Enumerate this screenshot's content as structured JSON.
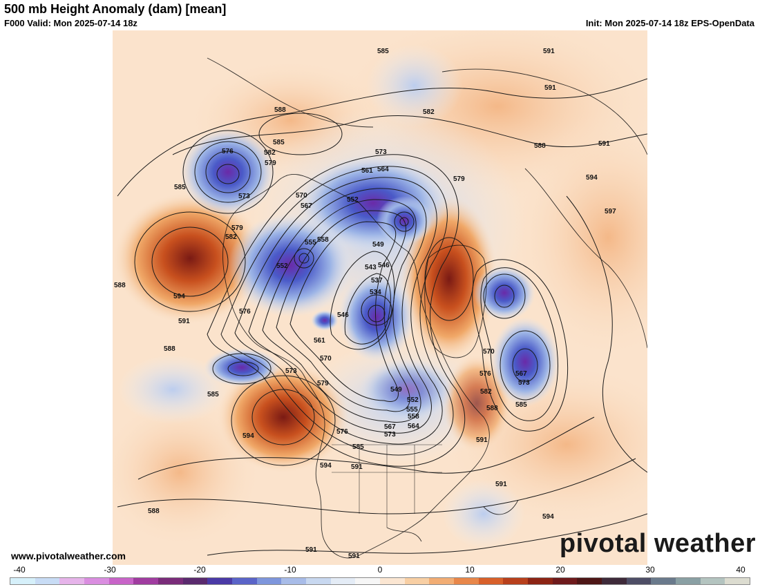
{
  "header": {
    "title": "500 mb Height Anomaly (dam) [mean]",
    "valid": "F000 Valid: Mon 2025-07-14 18z",
    "init": "Init: Mon 2025-07-14 18z EPS-OpenData"
  },
  "footer": {
    "site": "www.pivotalweather.com",
    "brand": "pivotal weather"
  },
  "colorbar": {
    "tick_labels": [
      "-40",
      "-30",
      "-20",
      "-10",
      "0",
      "10",
      "20",
      "30",
      "40"
    ],
    "colors": [
      "#d6f0fa",
      "#c8dcf5",
      "#e6b4ea",
      "#da8ee0",
      "#c864c8",
      "#a03ca0",
      "#7a2c7a",
      "#5a2a6e",
      "#4a3aa6",
      "#5a64c8",
      "#7e96dc",
      "#a8bce8",
      "#c8d8f0",
      "#e4ecf6",
      "#f6f6f6",
      "#fbe6d2",
      "#f8cfa4",
      "#f2ad74",
      "#e8874a",
      "#d8602a",
      "#b8401c",
      "#8c2414",
      "#6e1a1c",
      "#4e1616",
      "#3e2a3a",
      "#4e4e66",
      "#6a7a8c",
      "#8aa0a4",
      "#b4c4c0",
      "#dcdcd0"
    ]
  },
  "contour_labels": [
    "585",
    "591",
    "588",
    "582",
    "591",
    "588",
    "591",
    "576",
    "582",
    "585",
    "573",
    "579",
    "561",
    "564",
    "585",
    "570",
    "567",
    "579",
    "594",
    "552",
    "597",
    "573",
    "579",
    "582",
    "555",
    "558",
    "549",
    "552",
    "546",
    "588",
    "543",
    "537",
    "534",
    "594",
    "591",
    "576",
    "546",
    "561",
    "588",
    "570",
    "570",
    "567",
    "573",
    "576",
    "573",
    "579",
    "549",
    "582",
    "552",
    "555",
    "585",
    "594",
    "558",
    "564",
    "588",
    "585",
    "576",
    "567",
    "573",
    "591",
    "591",
    "585",
    "594",
    "594",
    "591",
    "588",
    "591",
    "591"
  ]
}
